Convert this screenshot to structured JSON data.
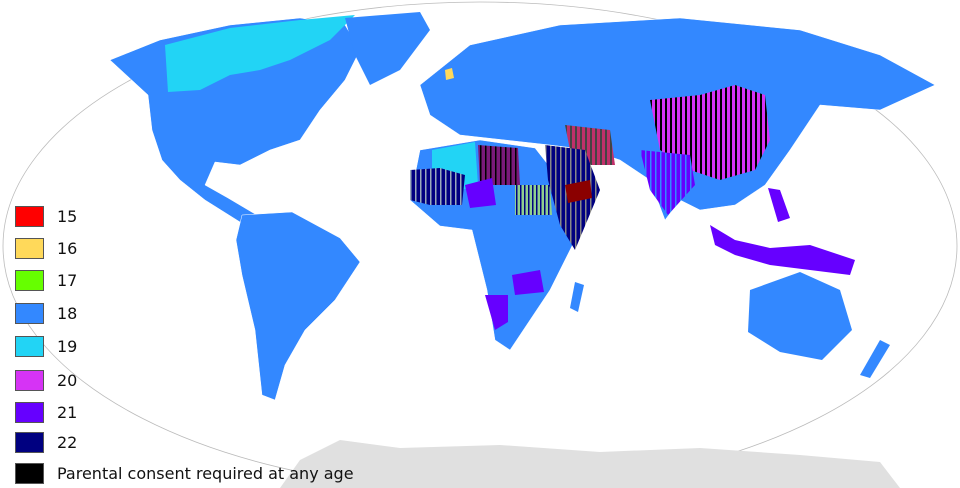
{
  "legend": {
    "items": [
      {
        "label": "15",
        "color": "#ff0000"
      },
      {
        "label": "16",
        "color": "#ffd95a"
      },
      {
        "label": "17",
        "color": "#66ff00"
      },
      {
        "label": "18",
        "color": "#3388ff"
      },
      {
        "label": "19",
        "color": "#22d4f5"
      },
      {
        "label": "20",
        "color": "#d633f5"
      },
      {
        "label": "21",
        "color": "#6600ff"
      },
      {
        "label": "22",
        "color": "#000080"
      },
      {
        "label": "Parental consent required at any age",
        "color": "#000000"
      }
    ]
  },
  "colors": {
    "land_default": "#3388ff",
    "no_data": "#e0e0e0",
    "border": "#ffffff"
  }
}
